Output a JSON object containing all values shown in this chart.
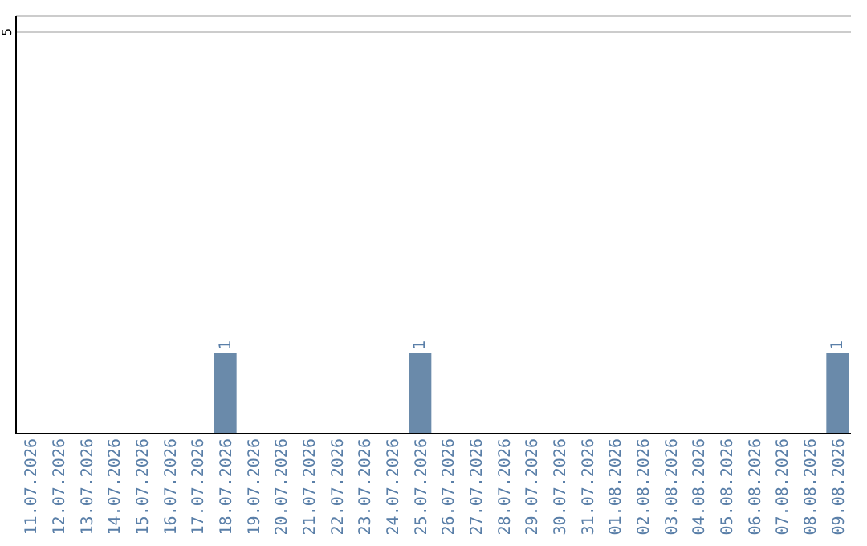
{
  "chart_data": {
    "type": "bar",
    "categories": [
      "11.07.2026",
      "12.07.2026",
      "13.07.2026",
      "14.07.2026",
      "15.07.2026",
      "16.07.2026",
      "17.07.2026",
      "18.07.2026",
      "19.07.2026",
      "20.07.2026",
      "21.07.2026",
      "22.07.2026",
      "23.07.2026",
      "24.07.2026",
      "25.07.2026",
      "26.07.2026",
      "27.07.2026",
      "28.07.2026",
      "29.07.2026",
      "30.07.2026",
      "31.07.2026",
      "01.08.2026",
      "02.08.2026",
      "03.08.2026",
      "04.08.2026",
      "05.08.2026",
      "06.08.2026",
      "07.08.2026",
      "08.08.2026",
      "09.08.2026"
    ],
    "values": [
      null,
      null,
      null,
      null,
      null,
      null,
      null,
      1,
      null,
      null,
      null,
      null,
      null,
      null,
      1,
      null,
      null,
      null,
      null,
      null,
      null,
      null,
      null,
      null,
      null,
      null,
      null,
      null,
      null,
      1
    ],
    "color": "#6a8aaa",
    "ylim": [
      0,
      5.2
    ],
    "yticks": [
      5
    ],
    "grid": "y",
    "data_labels": true,
    "legend": false
  }
}
